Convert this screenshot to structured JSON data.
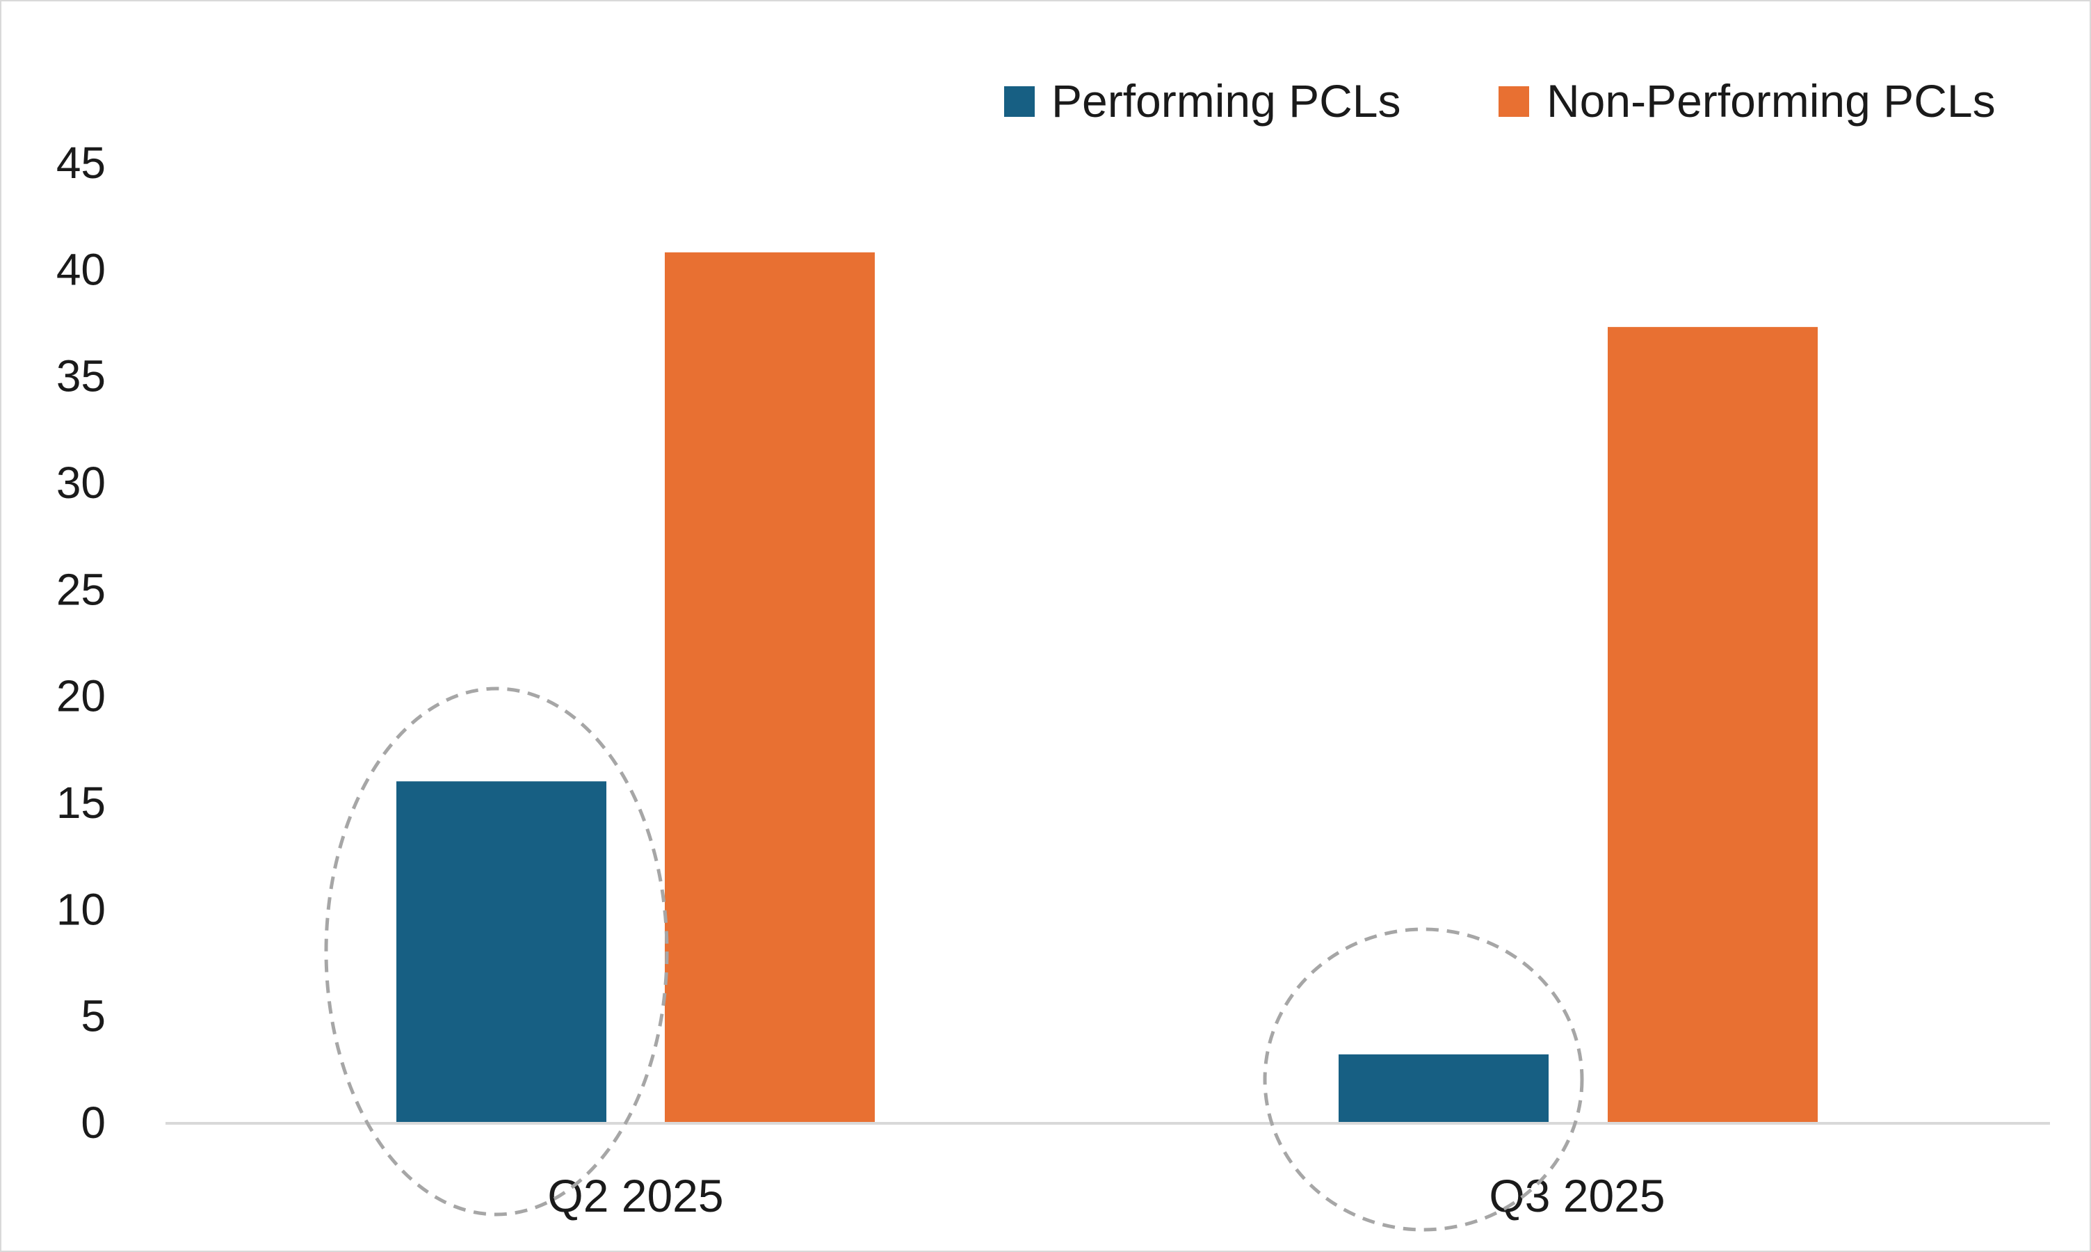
{
  "chart_data": {
    "type": "bar",
    "categories": [
      "Q2 2025",
      "Q3 2025"
    ],
    "series": [
      {
        "name": "Performing PCLs",
        "values": [
          16,
          3.2
        ],
        "color": "#175f83"
      },
      {
        "name": "Non-Performing PCLs",
        "values": [
          40.8,
          37.3
        ],
        "color": "#e87032"
      }
    ],
    "ylim": [
      0,
      45
    ],
    "yticks": [
      0,
      5,
      10,
      15,
      20,
      25,
      30,
      35,
      40,
      45
    ],
    "grid": false,
    "legend_position": "top-right",
    "annotations": [
      "dashed ellipse around Q2 2025 Performing PCLs bar",
      "dashed ellipse around Q3 2025 Performing PCLs bar"
    ],
    "annotation_color": "#a6a6a6",
    "axis_color": "#d9d9d9"
  }
}
